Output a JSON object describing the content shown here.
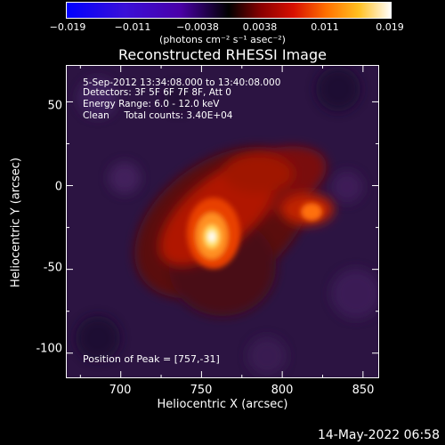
{
  "colorbar": {
    "ticks": [
      "−0.019",
      "−0.011",
      "−0.0038",
      "0.0038",
      "0.011",
      "0.019"
    ],
    "units_text": "(photons cm⁻² s⁻¹ asec⁻²)",
    "colors": [
      "#0000ff",
      "#4a00a8",
      "#000000",
      "#c00000",
      "#ff7000",
      "#ffffff"
    ]
  },
  "chart_data": {
    "type": "heatmap",
    "title": "Reconstructed RHESSI Image",
    "xlabel": "Heliocentric X (arcsec)",
    "ylabel": "Heliocentric Y (arcsec)",
    "xlim": [
      666,
      860
    ],
    "ylim": [
      -115,
      72
    ],
    "x_ticks": [
      700,
      750,
      800,
      850
    ],
    "y_ticks": [
      50,
      0,
      -50,
      -100
    ],
    "value_range": [
      -0.019,
      0.019
    ],
    "peak_position": [
      757,
      -31
    ],
    "annotations": [
      "5-Sep-2012 13:34:08.000 to 13:40:08.000",
      "Detectors: 3F 5F 6F 7F 8F, Att 0",
      "Energy Range: 6.0 - 12.0 keV",
      "Clean     Total counts: 3.40E+04"
    ],
    "peak_label": "Position of Peak = [757,-31]"
  },
  "footer": {
    "timestamp": "14-May-2022 06:58"
  }
}
